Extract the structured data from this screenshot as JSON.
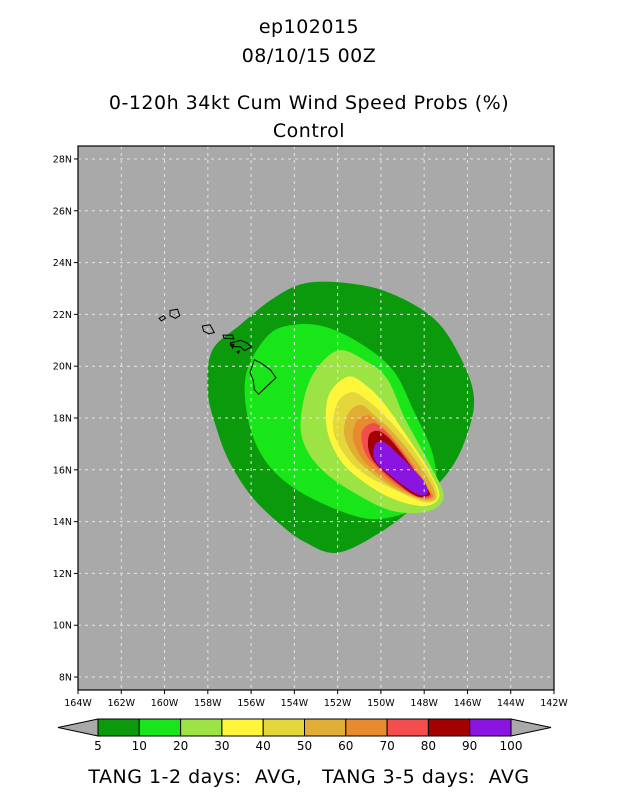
{
  "header": {
    "storm_id": "ep102015",
    "datetime": "08/10/15 00Z",
    "product": "0-120h 34kt Cum Wind Speed Probs (%)",
    "member": "Control"
  },
  "chart_data": {
    "type": "heatmap",
    "title": "0-120h 34kt Cum Wind Speed Probs (%)",
    "subtitle": "Control",
    "xlim": [
      -164,
      -142
    ],
    "ylim": [
      7.5,
      28.5
    ],
    "x_ticks": [
      -164,
      -162,
      -160,
      -158,
      -156,
      -154,
      -152,
      -150,
      -148,
      -146,
      -144,
      -142
    ],
    "x_tick_labels": [
      "164W",
      "162W",
      "160W",
      "158W",
      "156W",
      "154W",
      "152W",
      "150W",
      "148W",
      "146W",
      "144W",
      "142W"
    ],
    "y_ticks": [
      8,
      10,
      12,
      14,
      16,
      18,
      20,
      22,
      24,
      26,
      28
    ],
    "y_tick_labels": [
      "8N",
      "10N",
      "12N",
      "14N",
      "16N",
      "18N",
      "20N",
      "22N",
      "24N",
      "26N",
      "28N"
    ],
    "grid": true,
    "background_color": "#a9a9a9",
    "levels": [
      5,
      10,
      20,
      30,
      40,
      50,
      60,
      70,
      80,
      90,
      100
    ],
    "level_labels": [
      "5",
      "10",
      "20",
      "30",
      "40",
      "50",
      "60",
      "70",
      "80",
      "90",
      "100"
    ],
    "colors": [
      "#0b9a0b",
      "#19e619",
      "#9ce444",
      "#fff63c",
      "#e3d73c",
      "#e0ad35",
      "#e88a2e",
      "#f44d4d",
      "#a30000",
      "#8a14e0"
    ],
    "probability_contours": [
      {
        "level": 5,
        "lonlat": [
          [
            -157.8,
            20.6
          ],
          [
            -156.5,
            21.6
          ],
          [
            -155.0,
            22.6
          ],
          [
            -153.5,
            23.2
          ],
          [
            -151.5,
            23.2
          ],
          [
            -149.5,
            22.8
          ],
          [
            -147.5,
            21.8
          ],
          [
            -146.3,
            20.3
          ],
          [
            -145.7,
            18.8
          ],
          [
            -146.0,
            17.4
          ],
          [
            -146.8,
            16.0
          ],
          [
            -148.3,
            14.7
          ],
          [
            -150.0,
            13.6
          ],
          [
            -152.0,
            12.8
          ],
          [
            -153.5,
            13.2
          ],
          [
            -154.8,
            14.0
          ],
          [
            -156.0,
            15.0
          ],
          [
            -157.0,
            16.3
          ],
          [
            -157.6,
            17.6
          ],
          [
            -158.0,
            19.0
          ]
        ]
      },
      {
        "level": 10,
        "lonlat": [
          [
            -156.2,
            19.8
          ],
          [
            -155.2,
            21.2
          ],
          [
            -154.0,
            21.6
          ],
          [
            -152.5,
            21.5
          ],
          [
            -150.8,
            20.8
          ],
          [
            -149.4,
            19.8
          ],
          [
            -148.5,
            18.3
          ],
          [
            -147.6,
            16.6
          ],
          [
            -147.5,
            15.0
          ],
          [
            -148.6,
            14.4
          ],
          [
            -150.5,
            14.1
          ],
          [
            -152.7,
            14.7
          ],
          [
            -154.5,
            15.6
          ],
          [
            -155.6,
            16.7
          ],
          [
            -156.2,
            18.2
          ]
        ]
      },
      {
        "level": 20,
        "lonlat": [
          [
            -153.7,
            18.0
          ],
          [
            -153.2,
            19.6
          ],
          [
            -152.0,
            20.6
          ],
          [
            -150.7,
            20.2
          ],
          [
            -149.7,
            19.5
          ],
          [
            -148.9,
            18.0
          ],
          [
            -147.8,
            16.3
          ],
          [
            -147.1,
            15.0
          ],
          [
            -147.8,
            14.4
          ],
          [
            -149.4,
            14.4
          ],
          [
            -151.0,
            15.0
          ],
          [
            -152.6,
            15.9
          ],
          [
            -153.5,
            16.9
          ]
        ]
      },
      {
        "level": 30,
        "lonlat": [
          [
            -152.5,
            17.6
          ],
          [
            -152.4,
            18.9
          ],
          [
            -151.5,
            19.6
          ],
          [
            -150.6,
            19.2
          ],
          [
            -149.8,
            18.5
          ],
          [
            -148.8,
            17.3
          ],
          [
            -147.8,
            16.0
          ],
          [
            -147.3,
            15.0
          ],
          [
            -148.0,
            14.6
          ],
          [
            -149.5,
            14.9
          ],
          [
            -150.9,
            15.6
          ],
          [
            -151.9,
            16.4
          ]
        ]
      },
      {
        "level": 40,
        "lonlat": [
          [
            -152.2,
            17.5
          ],
          [
            -152.0,
            18.6
          ],
          [
            -151.3,
            19.0
          ],
          [
            -150.5,
            18.6
          ],
          [
            -149.6,
            17.9
          ],
          [
            -148.6,
            16.9
          ],
          [
            -147.6,
            15.6
          ],
          [
            -147.4,
            14.9
          ],
          [
            -148.0,
            14.75
          ],
          [
            -149.3,
            15.2
          ],
          [
            -150.7,
            15.8
          ],
          [
            -151.6,
            16.5
          ]
        ]
      },
      {
        "level": 50,
        "lonlat": [
          [
            -151.7,
            17.4
          ],
          [
            -151.5,
            18.2
          ],
          [
            -150.9,
            18.5
          ],
          [
            -150.3,
            18.1
          ],
          [
            -149.5,
            17.5
          ],
          [
            -148.6,
            16.6
          ],
          [
            -147.7,
            15.5
          ],
          [
            -147.5,
            14.9
          ],
          [
            -148.1,
            14.85
          ],
          [
            -149.4,
            15.3
          ],
          [
            -150.6,
            16.0
          ],
          [
            -151.3,
            16.6
          ]
        ]
      },
      {
        "level": 60,
        "lonlat": [
          [
            -151.3,
            17.3
          ],
          [
            -151.1,
            17.9
          ],
          [
            -150.6,
            18.1
          ],
          [
            -150.1,
            17.8
          ],
          [
            -149.4,
            17.2
          ],
          [
            -148.6,
            16.3
          ],
          [
            -147.8,
            15.3
          ],
          [
            -147.6,
            14.95
          ],
          [
            -148.2,
            14.9
          ],
          [
            -149.4,
            15.4
          ],
          [
            -150.5,
            16.1
          ],
          [
            -151.0,
            16.6
          ]
        ]
      },
      {
        "level": 70,
        "lonlat": [
          [
            -150.9,
            17.2
          ],
          [
            -150.8,
            17.6
          ],
          [
            -150.3,
            17.8
          ],
          [
            -149.8,
            17.5
          ],
          [
            -149.2,
            16.9
          ],
          [
            -148.5,
            16.1
          ],
          [
            -147.8,
            15.2
          ],
          [
            -147.7,
            14.95
          ],
          [
            -148.3,
            14.95
          ],
          [
            -149.4,
            15.5
          ],
          [
            -150.3,
            16.2
          ],
          [
            -150.7,
            16.6
          ]
        ]
      },
      {
        "level": 80,
        "lonlat": [
          [
            -150.6,
            17.0
          ],
          [
            -150.5,
            17.4
          ],
          [
            -150.1,
            17.5
          ],
          [
            -149.6,
            17.2
          ],
          [
            -149.1,
            16.7
          ],
          [
            -148.4,
            15.9
          ],
          [
            -147.8,
            15.2
          ],
          [
            -147.8,
            15.0
          ],
          [
            -148.4,
            15.0
          ],
          [
            -149.4,
            15.6
          ],
          [
            -150.2,
            16.2
          ],
          [
            -150.5,
            16.6
          ]
        ]
      },
      {
        "level": 90,
        "lonlat": [
          [
            -150.35,
            16.7
          ],
          [
            -150.2,
            17.05
          ],
          [
            -149.8,
            17.05
          ],
          [
            -149.2,
            16.6
          ],
          [
            -148.6,
            16.1
          ],
          [
            -148.0,
            15.55
          ],
          [
            -147.85,
            15.1
          ],
          [
            -148.3,
            15.05
          ],
          [
            -149.3,
            15.6
          ],
          [
            -150.0,
            16.1
          ],
          [
            -150.3,
            16.4
          ]
        ]
      }
    ],
    "islands_lonlat": [
      [
        [
          -160.25,
          21.85
        ],
        [
          -160.05,
          21.95
        ],
        [
          -159.95,
          21.85
        ],
        [
          -160.15,
          21.75
        ]
      ],
      [
        [
          -159.75,
          22.15
        ],
        [
          -159.4,
          22.2
        ],
        [
          -159.3,
          21.95
        ],
        [
          -159.5,
          21.85
        ],
        [
          -159.75,
          21.95
        ]
      ],
      [
        [
          -158.25,
          21.55
        ],
        [
          -157.9,
          21.6
        ],
        [
          -157.7,
          21.3
        ],
        [
          -157.95,
          21.25
        ],
        [
          -158.2,
          21.35
        ]
      ],
      [
        [
          -157.3,
          21.2
        ],
        [
          -156.85,
          21.2
        ],
        [
          -156.8,
          21.05
        ],
        [
          -157.25,
          21.08
        ]
      ],
      [
        [
          -156.95,
          20.9
        ],
        [
          -156.7,
          20.95
        ],
        [
          -156.5,
          21.0
        ],
        [
          -156.2,
          20.9
        ],
        [
          -155.98,
          20.75
        ],
        [
          -156.3,
          20.6
        ],
        [
          -156.5,
          20.75
        ],
        [
          -156.7,
          20.75
        ],
        [
          -156.95,
          20.8
        ]
      ],
      [
        [
          -156.95,
          20.85
        ],
        [
          -156.8,
          20.85
        ],
        [
          -156.85,
          20.7
        ]
      ],
      [
        [
          -156.65,
          20.55
        ],
        [
          -156.55,
          20.58
        ],
        [
          -156.58,
          20.5
        ]
      ],
      [
        [
          -155.85,
          20.25
        ],
        [
          -155.5,
          20.1
        ],
        [
          -155.1,
          19.85
        ],
        [
          -154.85,
          19.55
        ],
        [
          -155.3,
          19.2
        ],
        [
          -155.65,
          18.92
        ],
        [
          -155.85,
          19.1
        ],
        [
          -155.9,
          19.45
        ],
        [
          -156.05,
          19.75
        ],
        [
          -155.95,
          20.0
        ]
      ]
    ]
  },
  "footer": {
    "text": "TANG 1-2 days:  AVG,   TANG 3-5 days:  AVG"
  }
}
